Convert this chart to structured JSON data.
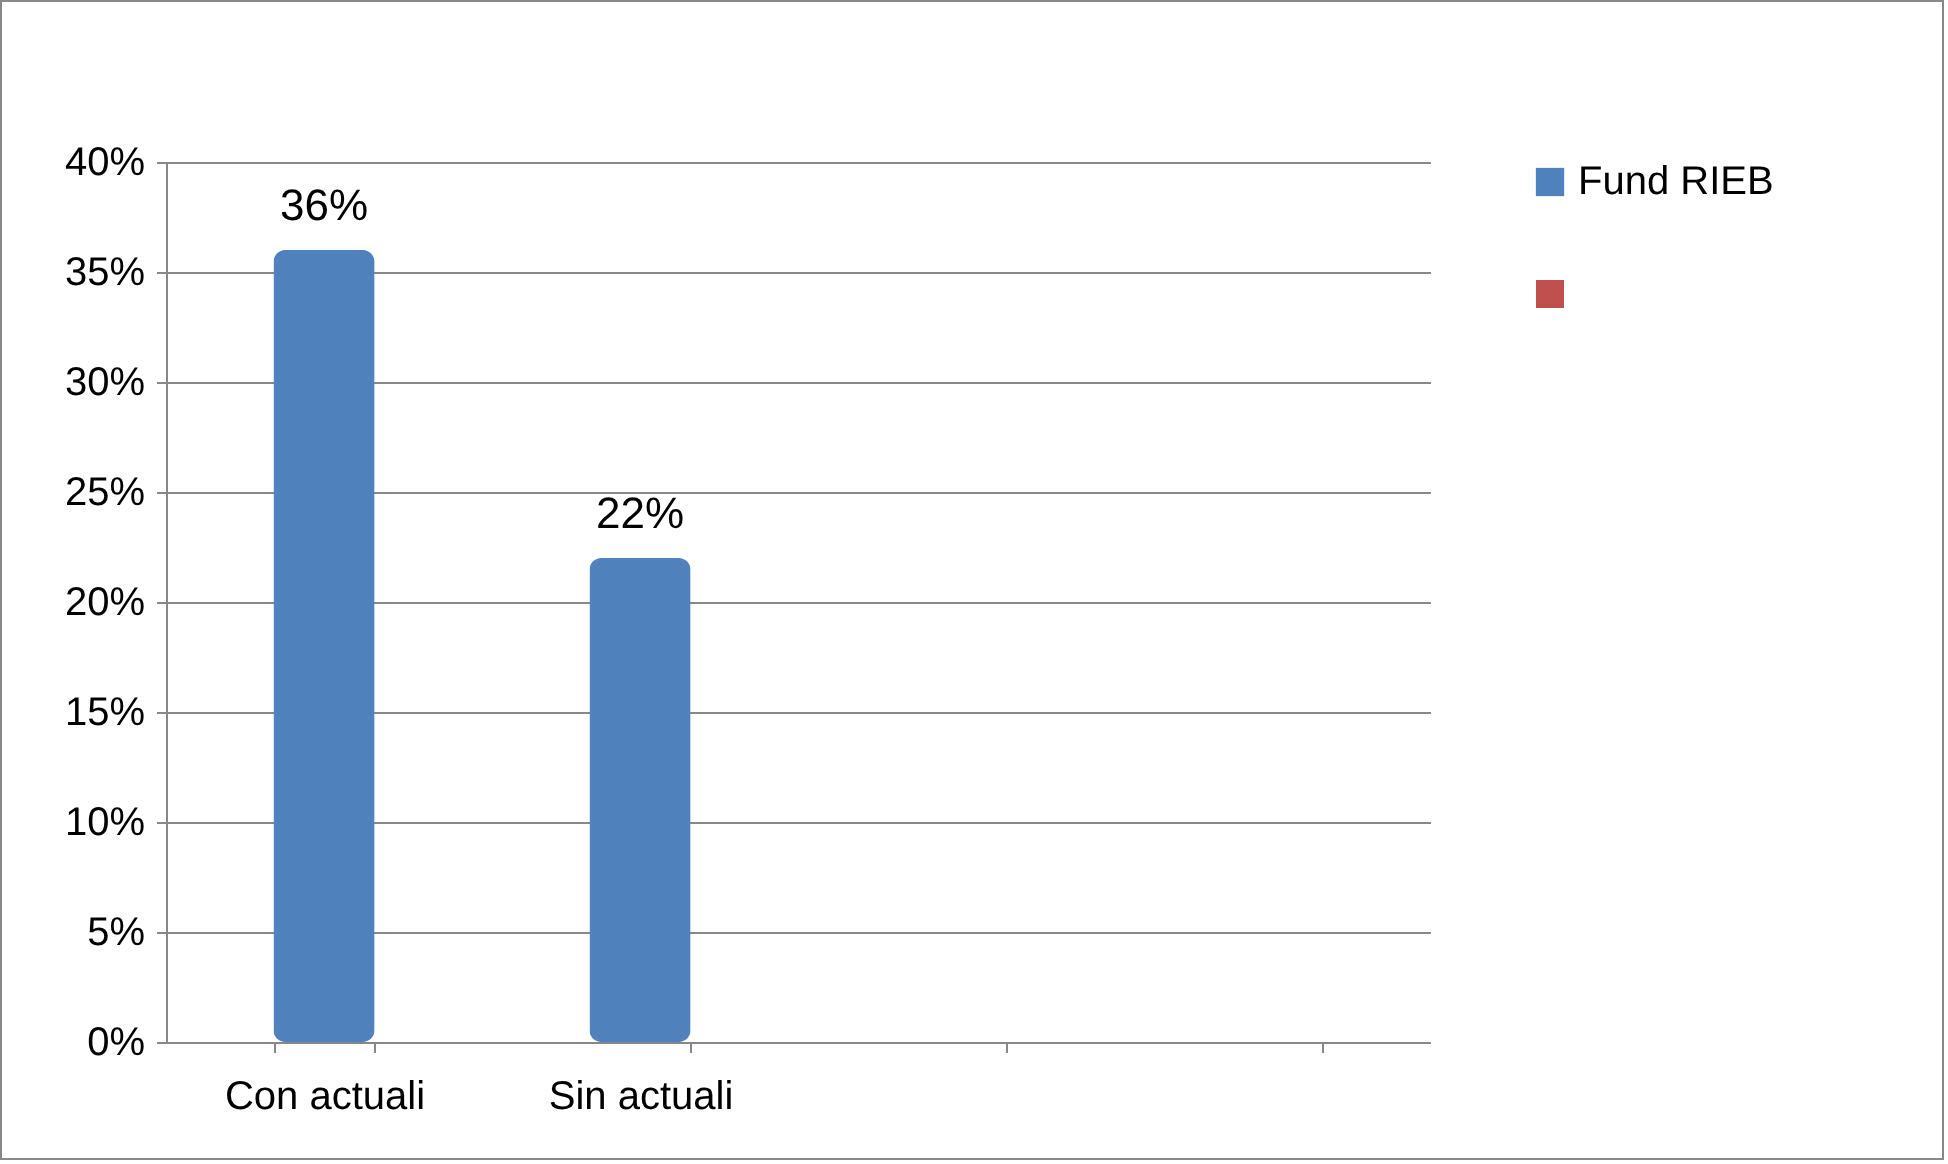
{
  "chart_data": {
    "type": "bar",
    "categories": [
      "Con actuali",
      "Sin actuali",
      null,
      null
    ],
    "series": [
      {
        "name": "Fund RIEB",
        "color": "#4f81bd",
        "values": [
          36,
          22,
          null,
          null
        ],
        "value_labels": [
          "36%",
          "22%",
          null,
          null
        ]
      },
      {
        "color": "#c0504d",
        "values": [
          null,
          null,
          null,
          null
        ]
      }
    ],
    "ylim": [
      0,
      40
    ],
    "yticks": [
      {
        "value": 0,
        "label": "0%"
      },
      {
        "value": 5,
        "label": "5%"
      },
      {
        "value": 10,
        "label": "10%"
      },
      {
        "value": 15,
        "label": "15%"
      },
      {
        "value": 20,
        "label": "20%"
      },
      {
        "value": 25,
        "label": "25%"
      },
      {
        "value": 30,
        "label": "30%"
      },
      {
        "value": 35,
        "label": "35%"
      },
      {
        "value": 40,
        "label": "40%"
      }
    ],
    "grid": "y",
    "legend": "right"
  }
}
